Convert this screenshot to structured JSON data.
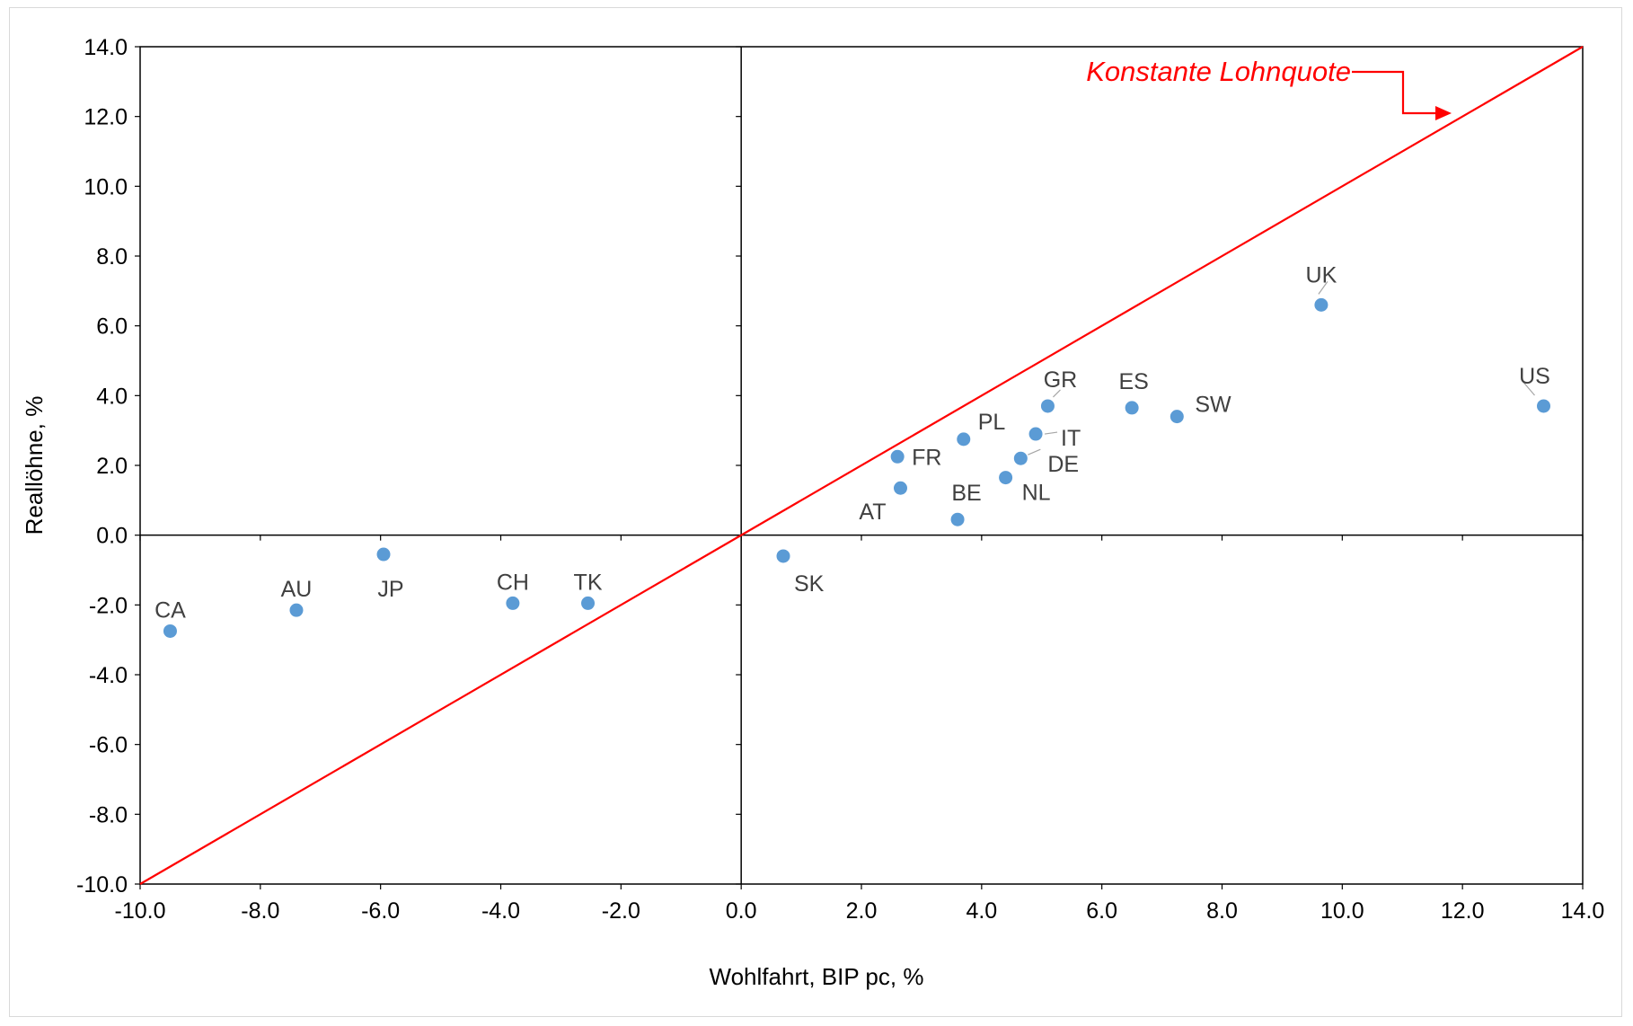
{
  "chart_data": {
    "type": "scatter",
    "xlabel": "Wohlfahrt, BIP pc, %",
    "ylabel": "Reallöhne, %",
    "xlim": [
      -10,
      14
    ],
    "ylim": [
      -10,
      14
    ],
    "x_ticks": [
      "-10.0",
      "-8.0",
      "-6.0",
      "-4.0",
      "-2.0",
      "0.0",
      "2.0",
      "4.0",
      "6.0",
      "8.0",
      "10.0",
      "12.0",
      "14.0"
    ],
    "y_ticks": [
      "-10.0",
      "-8.0",
      "-6.0",
      "-4.0",
      "-2.0",
      "0.0",
      "2.0",
      "4.0",
      "6.0",
      "8.0",
      "10.0",
      "12.0",
      "14.0"
    ],
    "grid": false,
    "points": [
      {
        "label": "CA",
        "x": -9.5,
        "y": -2.75
      },
      {
        "label": "AU",
        "x": -7.4,
        "y": -2.15
      },
      {
        "label": "JP",
        "x": -5.95,
        "y": -0.55
      },
      {
        "label": "CH",
        "x": -3.8,
        "y": -1.95
      },
      {
        "label": "TK",
        "x": -2.55,
        "y": -1.95
      },
      {
        "label": "SK",
        "x": 0.7,
        "y": -0.6
      },
      {
        "label": "AT",
        "x": 2.65,
        "y": 1.35
      },
      {
        "label": "FR",
        "x": 2.6,
        "y": 2.25
      },
      {
        "label": "BE",
        "x": 3.6,
        "y": 0.45
      },
      {
        "label": "PL",
        "x": 3.7,
        "y": 2.75
      },
      {
        "label": "NL",
        "x": 4.4,
        "y": 1.65
      },
      {
        "label": "DE",
        "x": 4.65,
        "y": 2.2
      },
      {
        "label": "IT",
        "x": 4.9,
        "y": 2.9
      },
      {
        "label": "GR",
        "x": 5.1,
        "y": 3.7
      },
      {
        "label": "ES",
        "x": 6.5,
        "y": 3.65
      },
      {
        "label": "SW",
        "x": 7.25,
        "y": 3.4
      },
      {
        "label": "UK",
        "x": 9.65,
        "y": 6.6
      },
      {
        "label": "US",
        "x": 13.35,
        "y": 3.7
      }
    ],
    "highlight_label": "AT",
    "reference_line": {
      "label": "Konstante Lohnquote",
      "from": [
        -10,
        -10
      ],
      "to": [
        14,
        14
      ]
    },
    "colors": {
      "points": "#5b9bd5",
      "reference": "#ff0000",
      "labels": "#404040",
      "highlight": "#ff0000"
    }
  }
}
